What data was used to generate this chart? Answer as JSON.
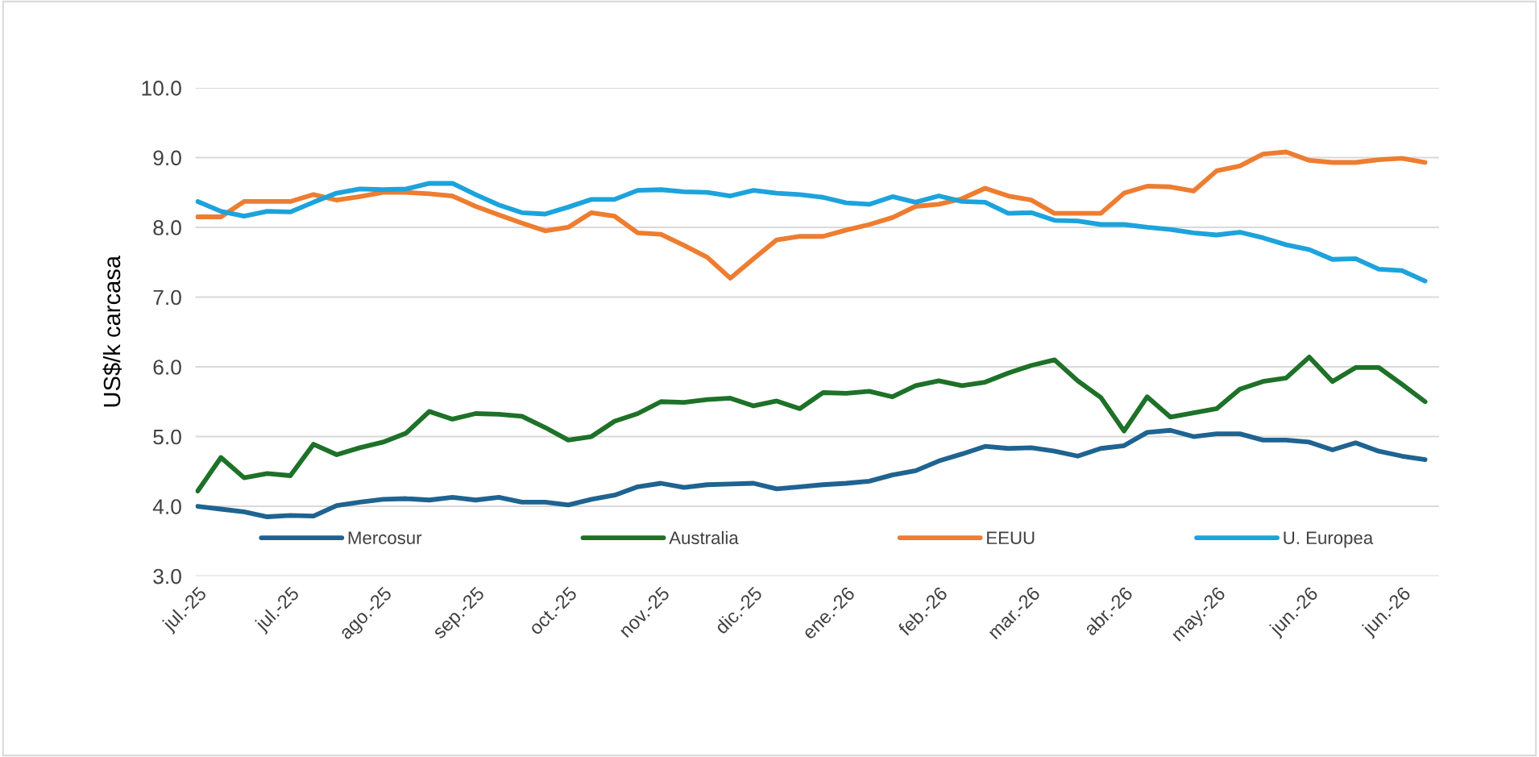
{
  "chart_data": {
    "type": "line",
    "ylabel": "US$/k carcasa",
    "categories": [
      "jul.-25",
      null,
      null,
      null,
      "jul.-25",
      null,
      null,
      null,
      "ago.-25",
      null,
      null,
      null,
      "sep.-25",
      null,
      null,
      null,
      "oct.-25",
      null,
      null,
      null,
      "nov.-25",
      null,
      null,
      null,
      "dic.-25",
      null,
      null,
      null,
      "ene.-26",
      null,
      null,
      null,
      "feb.-26",
      null,
      null,
      null,
      "mar.-26",
      null,
      null,
      null,
      "abr.-26",
      null,
      null,
      null,
      "may.-26",
      null,
      null,
      null,
      "jun.-26",
      null,
      null,
      null,
      "jun.-26",
      null
    ],
    "series": [
      {
        "name": "Mercosur",
        "color": "#1f6391",
        "values": [
          4.0,
          3.96,
          3.92,
          3.85,
          3.87,
          3.86,
          4.01,
          4.06,
          4.1,
          4.11,
          4.09,
          4.13,
          4.09,
          4.13,
          4.06,
          4.06,
          4.02,
          4.1,
          4.16,
          4.28,
          4.33,
          4.27,
          4.31,
          4.32,
          4.33,
          4.25,
          4.28,
          4.31,
          4.33,
          4.36,
          4.45,
          4.51,
          4.65,
          4.75,
          4.86,
          4.83,
          4.84,
          4.79,
          4.72,
          4.83,
          4.87,
          5.06,
          5.09,
          5.0,
          5.04,
          5.04,
          4.95,
          4.95,
          4.92,
          4.81,
          4.91,
          4.79,
          4.72,
          4.67
        ]
      },
      {
        "name": "Australia",
        "color": "#1e7128",
        "values": [
          4.22,
          4.7,
          4.41,
          4.47,
          4.44,
          4.89,
          4.74,
          4.84,
          4.92,
          5.05,
          5.36,
          5.25,
          5.33,
          5.32,
          5.29,
          5.13,
          4.95,
          5.0,
          5.22,
          5.33,
          5.5,
          5.49,
          5.53,
          5.55,
          5.44,
          5.51,
          5.4,
          5.63,
          5.62,
          5.65,
          5.57,
          5.73,
          5.8,
          5.73,
          5.78,
          5.91,
          6.02,
          6.1,
          5.8,
          5.56,
          5.08,
          5.57,
          5.28,
          5.34,
          5.4,
          5.68,
          5.79,
          5.84,
          6.14,
          5.79,
          5.99,
          5.99,
          5.75,
          5.5
        ]
      },
      {
        "name": "EEUU",
        "color": "#ed7d31",
        "values": [
          8.15,
          8.15,
          8.37,
          8.37,
          8.37,
          8.47,
          8.39,
          8.44,
          8.5,
          8.5,
          8.48,
          8.45,
          8.3,
          8.18,
          8.06,
          7.95,
          8.0,
          8.21,
          8.16,
          7.92,
          7.9,
          7.74,
          7.57,
          7.27,
          7.55,
          7.82,
          7.87,
          7.87,
          7.96,
          8.04,
          8.14,
          8.3,
          8.33,
          8.41,
          8.56,
          8.45,
          8.39,
          8.2,
          8.2,
          8.2,
          8.49,
          8.59,
          8.58,
          8.52,
          8.81,
          8.88,
          9.05,
          9.08,
          8.96,
          8.93,
          8.93,
          8.97,
          8.99,
          8.93
        ]
      },
      {
        "name": "U. Europea",
        "color": "#1ca3dc",
        "values": [
          8.37,
          8.23,
          8.16,
          8.23,
          8.22,
          8.36,
          8.49,
          8.55,
          8.54,
          8.55,
          8.63,
          8.63,
          8.47,
          8.32,
          8.21,
          8.19,
          8.29,
          8.4,
          8.4,
          8.53,
          8.54,
          8.51,
          8.5,
          8.45,
          8.53,
          8.49,
          8.47,
          8.43,
          8.35,
          8.33,
          8.44,
          8.36,
          8.45,
          8.37,
          8.36,
          8.2,
          8.21,
          8.1,
          8.09,
          8.04,
          8.04,
          8.0,
          7.97,
          7.92,
          7.89,
          7.93,
          7.85,
          7.75,
          7.68,
          7.54,
          7.55,
          7.4,
          7.38,
          7.23
        ]
      }
    ],
    "ylim": [
      3.0,
      10.0
    ],
    "yticks": [
      {
        "value": 3,
        "label": "3.0"
      },
      {
        "value": 4,
        "label": "4.0"
      },
      {
        "value": 5,
        "label": "5.0"
      },
      {
        "value": 6,
        "label": "6.0"
      },
      {
        "value": 7,
        "label": "7.0"
      },
      {
        "value": 8,
        "label": "8.0"
      },
      {
        "value": 9,
        "label": "9.0"
      },
      {
        "value": 10,
        "label": "10.0"
      }
    ],
    "grid": "y",
    "legend": "bottom",
    "line_style": "solid",
    "marker": "none"
  }
}
